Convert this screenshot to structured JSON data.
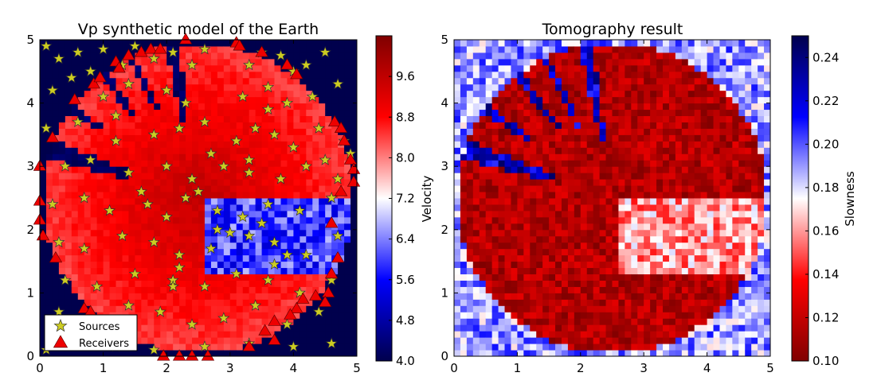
{
  "chart_data": [
    {
      "type": "heatmap",
      "title": "Vp synthetic model of the Earth",
      "xlim": [
        0,
        5
      ],
      "ylim": [
        0,
        5
      ],
      "x_ticks": [
        "0",
        "1",
        "2",
        "3",
        "4",
        "5"
      ],
      "y_ticks": [
        "0",
        "1",
        "2",
        "3",
        "4",
        "5"
      ],
      "grid": false,
      "colormap": "seismic_r",
      "colorbar": {
        "label": "Velocity",
        "range": [
          4.0,
          10.4
        ],
        "ticks": [
          "4.0",
          "4.8",
          "5.6",
          "6.4",
          "7.2",
          "8.0",
          "8.8",
          "9.6"
        ]
      },
      "disk": {
        "center": [
          2.5,
          2.5
        ],
        "radius": 2.45
      },
      "background_value": 4.0,
      "main_value": 9.6,
      "wedges_low_velocity": [
        {
          "angles_deg": [
            97,
            102
          ],
          "inner_r": 1.2
        },
        {
          "angles_deg": [
            114,
            117
          ],
          "inner_r": 1.5
        },
        {
          "angles_deg": [
            126,
            129
          ],
          "inner_r": 1.7
        },
        {
          "angles_deg": [
            143,
            146
          ],
          "inner_r": 1.9
        },
        {
          "angles_deg": [
            158,
            165
          ],
          "inner_r": 1.2
        }
      ],
      "low_velocity_anomaly": {
        "x_range": [
          2.6,
          5.0
        ],
        "y_range": [
          1.3,
          2.5
        ],
        "value": 6.0
      },
      "legend": {
        "placement": "lower-left",
        "entries": [
          {
            "label": "Sources",
            "marker": "star",
            "color": "#cccc22"
          },
          {
            "label": "Receivers",
            "marker": "triangle",
            "color": "#ee0000"
          }
        ]
      },
      "series": [
        {
          "name": "Sources",
          "marker": "star",
          "points": [
            [
              0.1,
              4.9
            ],
            [
              0.3,
              4.7
            ],
            [
              0.6,
              4.8
            ],
            [
              0.8,
              4.5
            ],
            [
              1.0,
              4.85
            ],
            [
              1.3,
              4.6
            ],
            [
              1.5,
              4.9
            ],
            [
              1.8,
              4.7
            ],
            [
              2.1,
              4.8
            ],
            [
              2.4,
              4.6
            ],
            [
              2.6,
              4.85
            ],
            [
              3.3,
              4.6
            ],
            [
              3.5,
              4.8
            ],
            [
              3.8,
              4.75
            ],
            [
              4.2,
              4.6
            ],
            [
              4.5,
              4.8
            ],
            [
              0.2,
              4.2
            ],
            [
              0.5,
              4.4
            ],
            [
              1.0,
              4.1
            ],
            [
              1.4,
              4.3
            ],
            [
              2.0,
              4.2
            ],
            [
              2.3,
              4.0
            ],
            [
              3.2,
              4.1
            ],
            [
              3.6,
              4.25
            ],
            [
              3.9,
              4.0
            ],
            [
              4.3,
              4.1
            ],
            [
              4.7,
              4.3
            ],
            [
              0.1,
              3.6
            ],
            [
              0.6,
              3.7
            ],
            [
              1.2,
              3.4
            ],
            [
              1.8,
              3.5
            ],
            [
              2.2,
              3.6
            ],
            [
              2.6,
              3.7
            ],
            [
              3.1,
              3.4
            ],
            [
              3.4,
              3.6
            ],
            [
              3.7,
              3.5
            ],
            [
              4.0,
              3.3
            ],
            [
              4.4,
              3.6
            ],
            [
              4.8,
              3.4
            ],
            [
              0.4,
              3.0
            ],
            [
              0.8,
              3.1
            ],
            [
              1.4,
              2.9
            ],
            [
              2.0,
              3.0
            ],
            [
              2.4,
              2.8
            ],
            [
              2.9,
              3.0
            ],
            [
              3.3,
              2.9
            ],
            [
              3.8,
              2.8
            ],
            [
              4.2,
              3.0
            ],
            [
              4.7,
              2.8
            ],
            [
              0.2,
              2.4
            ],
            [
              0.7,
              2.5
            ],
            [
              1.1,
              2.3
            ],
            [
              1.7,
              2.4
            ],
            [
              2.3,
              2.5
            ],
            [
              2.8,
              2.3
            ],
            [
              3.2,
              2.2
            ],
            [
              3.6,
              2.4
            ],
            [
              4.1,
              2.3
            ],
            [
              4.6,
              2.5
            ],
            [
              0.3,
              1.8
            ],
            [
              0.7,
              1.7
            ],
            [
              1.3,
              1.9
            ],
            [
              1.8,
              1.8
            ],
            [
              2.2,
              1.6
            ],
            [
              2.7,
              1.7
            ],
            [
              3.3,
              1.9
            ],
            [
              3.7,
              1.8
            ],
            [
              4.2,
              1.6
            ],
            [
              4.7,
              1.9
            ],
            [
              0.4,
              1.2
            ],
            [
              0.9,
              1.1
            ],
            [
              1.5,
              1.3
            ],
            [
              2.1,
              1.2
            ],
            [
              2.6,
              1.1
            ],
            [
              3.1,
              1.3
            ],
            [
              3.6,
              1.2
            ],
            [
              4.1,
              1.0
            ],
            [
              4.6,
              1.2
            ],
            [
              0.3,
              0.7
            ],
            [
              0.8,
              0.6
            ],
            [
              1.4,
              0.8
            ],
            [
              1.9,
              0.7
            ],
            [
              2.4,
              0.5
            ],
            [
              2.9,
              0.6
            ],
            [
              3.4,
              0.8
            ],
            [
              3.9,
              0.5
            ],
            [
              4.4,
              0.7
            ],
            [
              0.5,
              0.2
            ],
            [
              1.2,
              0.15
            ],
            [
              1.8,
              0.1
            ],
            [
              2.6,
              0.15
            ],
            [
              3.3,
              0.2
            ],
            [
              4.0,
              0.15
            ],
            [
              4.6,
              0.2
            ],
            [
              2.8,
              2.0
            ],
            [
              3.0,
              1.95
            ],
            [
              3.5,
              2.1
            ],
            [
              3.9,
              1.6
            ],
            [
              3.7,
              1.45
            ],
            [
              2.2,
              1.4
            ],
            [
              2.1,
              1.1
            ],
            [
              1.6,
              2.6
            ],
            [
              1.2,
              3.8
            ],
            [
              2.7,
              3.2
            ],
            [
              3.3,
              3.1
            ],
            [
              4.5,
              3.1
            ],
            [
              4.9,
              3.2
            ],
            [
              0.1,
              0.1
            ],
            [
              1.0,
              0.4
            ],
            [
              2.0,
              2.2
            ],
            [
              2.5,
              2.6
            ],
            [
              3.6,
              3.9
            ],
            [
              4.0,
              4.5
            ]
          ]
        },
        {
          "name": "Receivers",
          "marker": "triangle",
          "points": [
            [
              0.0,
              3.0
            ],
            [
              0.0,
              2.45
            ],
            [
              0.0,
              2.15
            ],
            [
              0.05,
              1.9
            ],
            [
              0.2,
              3.45
            ],
            [
              0.25,
              1.55
            ],
            [
              0.55,
              4.05
            ],
            [
              0.7,
              0.75
            ],
            [
              0.8,
              0.7
            ],
            [
              0.85,
              4.3
            ],
            [
              0.95,
              4.4
            ],
            [
              1.2,
              4.65
            ],
            [
              1.25,
              4.55
            ],
            [
              1.4,
              4.75
            ],
            [
              1.6,
              4.8
            ],
            [
              1.75,
              4.85
            ],
            [
              1.9,
              4.85
            ],
            [
              2.3,
              5.0
            ],
            [
              3.1,
              4.95
            ],
            [
              3.15,
              4.9
            ],
            [
              3.5,
              4.8
            ],
            [
              3.9,
              4.6
            ],
            [
              4.05,
              4.45
            ],
            [
              4.65,
              3.7
            ],
            [
              4.75,
              3.6
            ],
            [
              4.8,
              3.4
            ],
            [
              4.9,
              3.1
            ],
            [
              4.95,
              2.95
            ],
            [
              4.95,
              2.75
            ],
            [
              4.75,
              2.6
            ],
            [
              4.6,
              2.1
            ],
            [
              4.7,
              1.55
            ],
            [
              4.6,
              1.3
            ],
            [
              4.55,
              1.0
            ],
            [
              4.5,
              0.85
            ],
            [
              4.35,
              0.95
            ],
            [
              4.15,
              0.9
            ],
            [
              4.05,
              0.75
            ],
            [
              3.95,
              0.65
            ],
            [
              3.7,
              0.55
            ],
            [
              3.55,
              0.4
            ],
            [
              3.3,
              0.15
            ],
            [
              3.7,
              0.25
            ],
            [
              1.95,
              0.0
            ],
            [
              2.2,
              0.0
            ],
            [
              2.4,
              0.0
            ],
            [
              2.65,
              0.0
            ]
          ]
        }
      ]
    },
    {
      "type": "heatmap",
      "title": "Tomography result",
      "xlim": [
        0,
        5
      ],
      "ylim": [
        0,
        5
      ],
      "x_ticks": [
        "0",
        "1",
        "2",
        "3",
        "4",
        "5"
      ],
      "y_ticks": [
        "0",
        "1",
        "2",
        "3",
        "4",
        "5"
      ],
      "grid": false,
      "colormap": "seismic",
      "colorbar": {
        "label": "Slowness",
        "range": [
          0.1,
          0.25
        ],
        "ticks": [
          "0.10",
          "0.12",
          "0.14",
          "0.16",
          "0.18",
          "0.20",
          "0.22",
          "0.24"
        ]
      },
      "background_value": 0.19,
      "main_value": 0.115,
      "wedge_value": 0.225,
      "anomaly_value": 0.16
    }
  ]
}
